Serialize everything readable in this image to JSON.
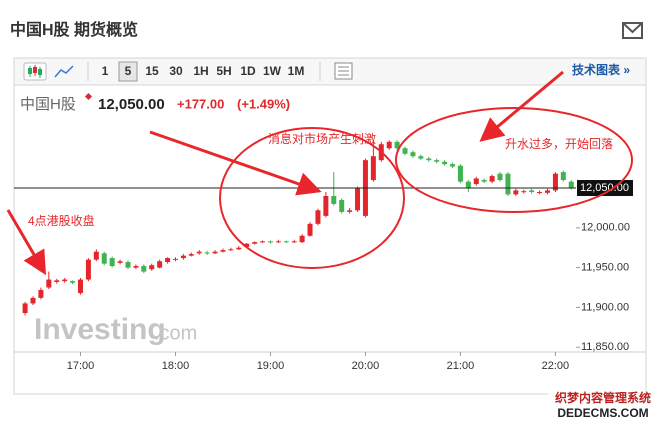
{
  "header": {
    "title": "中国H股 期货概览",
    "instrument": "中国H股",
    "change": "+177.00",
    "change_pct": "(+1.49%)",
    "chart_link": "技术图表 »"
  },
  "toolbar": {
    "intervals": [
      "1",
      "5",
      "15",
      "30",
      "1H",
      "5H",
      "1D",
      "1W",
      "1M"
    ],
    "selected": "5"
  },
  "logo": {
    "name": "Investing",
    "suffix": ".com"
  },
  "watermark": {
    "line1": "织梦内容管理系统",
    "line2": "DEDECMS.COM"
  },
  "chart_data": {
    "type": "candlestick",
    "x": [
      985,
      990,
      995,
      1000,
      1005,
      1010,
      1015,
      1020,
      1025,
      1030,
      1035,
      1040,
      1045,
      1050,
      1055,
      1060,
      1065,
      1070,
      1075,
      1080,
      1085,
      1090,
      1095,
      1100,
      1105,
      1110,
      1115,
      1120,
      1125,
      1130,
      1135,
      1140,
      1145,
      1150,
      1155,
      1160,
      1165,
      1170,
      1175,
      1180,
      1185,
      1190,
      1195,
      1200,
      1205,
      1210,
      1215,
      1220,
      1225,
      1230,
      1235,
      1240,
      1245,
      1250,
      1255,
      1260,
      1265,
      1270,
      1275,
      1280,
      1285,
      1290,
      1295,
      1300,
      1305,
      1310,
      1315,
      1320,
      1325,
      1330
    ],
    "open": [
      11893,
      11905,
      11912,
      11925,
      11932,
      11933,
      11933,
      11918,
      11935,
      11960,
      11968,
      11962,
      11956,
      11957,
      11950,
      11952,
      11948,
      11950,
      11957,
      11960,
      11962,
      11965,
      11968,
      11969,
      11968,
      11970,
      11972,
      11973,
      11976,
      11980,
      11982,
      11983,
      11982,
      11983,
      11982,
      11982,
      11990,
      12005,
      12015,
      12040,
      12035,
      12020,
      12022,
      12015,
      12060,
      12085,
      12100,
      12108,
      12100,
      12095,
      12090,
      12087,
      12085,
      12083,
      12080,
      12078,
      12058,
      12055,
      12060,
      12058,
      12068,
      12068,
      12042,
      12045,
      12047,
      12044,
      12044,
      12047,
      12070,
      12058
    ],
    "high": [
      11907,
      11914,
      11925,
      11945,
      11936,
      11937,
      11934,
      11937,
      11962,
      11973,
      11970,
      11964,
      11960,
      11959,
      11954,
      11954,
      11955,
      11960,
      11963,
      11963,
      11967,
      11969,
      11972,
      11971,
      11972,
      11974,
      11975,
      11977,
      11981,
      11983,
      11984,
      11984,
      11985,
      11984,
      11985,
      11992,
      12007,
      12024,
      12045,
      12070,
      12037,
      12025,
      12052,
      12087,
      12110,
      12108,
      12110,
      12110,
      12102,
      12097,
      12092,
      12089,
      12087,
      12085,
      12082,
      12080,
      12060,
      12064,
      12062,
      12067,
      12070,
      12070,
      12049,
      12048,
      12049,
      12047,
      12049,
      12070,
      12072,
      12060
    ],
    "low": [
      11890,
      11903,
      11910,
      11923,
      11930,
      11931,
      11929,
      11916,
      11933,
      11958,
      11953,
      11950,
      11954,
      11948,
      11948,
      11943,
      11946,
      11949,
      11955,
      11958,
      11960,
      11964,
      11966,
      11966,
      11967,
      11969,
      11971,
      11972,
      11975,
      11979,
      11981,
      11980,
      11981,
      11981,
      11981,
      11981,
      11989,
      12003,
      12013,
      12028,
      12018,
      12018,
      12020,
      12013,
      12058,
      12083,
      12098,
      12098,
      12091,
      12088,
      12085,
      12083,
      12081,
      12078,
      12075,
      12056,
      12045,
      12053,
      12056,
      12056,
      12058,
      12040,
      12040,
      12043,
      12043,
      12042,
      12042,
      12045,
      12058,
      12048
    ],
    "close": [
      11905,
      11912,
      11922,
      11935,
      11934,
      11935,
      11931,
      11935,
      11960,
      11970,
      11955,
      11952,
      11958,
      11950,
      11952,
      11945,
      11953,
      11958,
      11962,
      11961,
      11965,
      11967,
      11970,
      11968,
      11970,
      11972,
      11973,
      11975,
      11980,
      11982,
      11983,
      11982,
      11983,
      11982,
      11983,
      11990,
      12005,
      12022,
      12040,
      12030,
      12020,
      12022,
      12050,
      12085,
      12090,
      12105,
      12108,
      12100,
      12093,
      12090,
      12087,
      12085,
      12083,
      12080,
      12077,
      12058,
      12050,
      12062,
      12058,
      12065,
      12060,
      12042,
      12047,
      12046,
      12045,
      12045,
      12047,
      12068,
      12060,
      12050
    ],
    "up_color": "#e3262b",
    "down_color": "#3fb34f",
    "last_price": {
      "value": 12050,
      "label": "12,050.00"
    },
    "xlim": [
      978,
      1333
    ],
    "ylim": [
      11844,
      12148
    ],
    "xticks": [
      {
        "value": 1020,
        "label": "17:00"
      },
      {
        "value": 1080,
        "label": "18:00"
      },
      {
        "value": 1140,
        "label": "19:00"
      },
      {
        "value": 1200,
        "label": "20:00"
      },
      {
        "value": 1260,
        "label": "21:00"
      },
      {
        "value": 1320,
        "label": "22:00"
      }
    ],
    "yticks": [
      {
        "value": 11850,
        "label": "11,850.00"
      },
      {
        "value": 11900,
        "label": "11,900.00"
      },
      {
        "value": 11950,
        "label": "11,950.00"
      },
      {
        "value": 12000,
        "label": "12,000.00"
      }
    ],
    "annotations": [
      "4点港股收盘",
      "消息对市场产生刺激",
      "升水过多，开始回落"
    ]
  }
}
